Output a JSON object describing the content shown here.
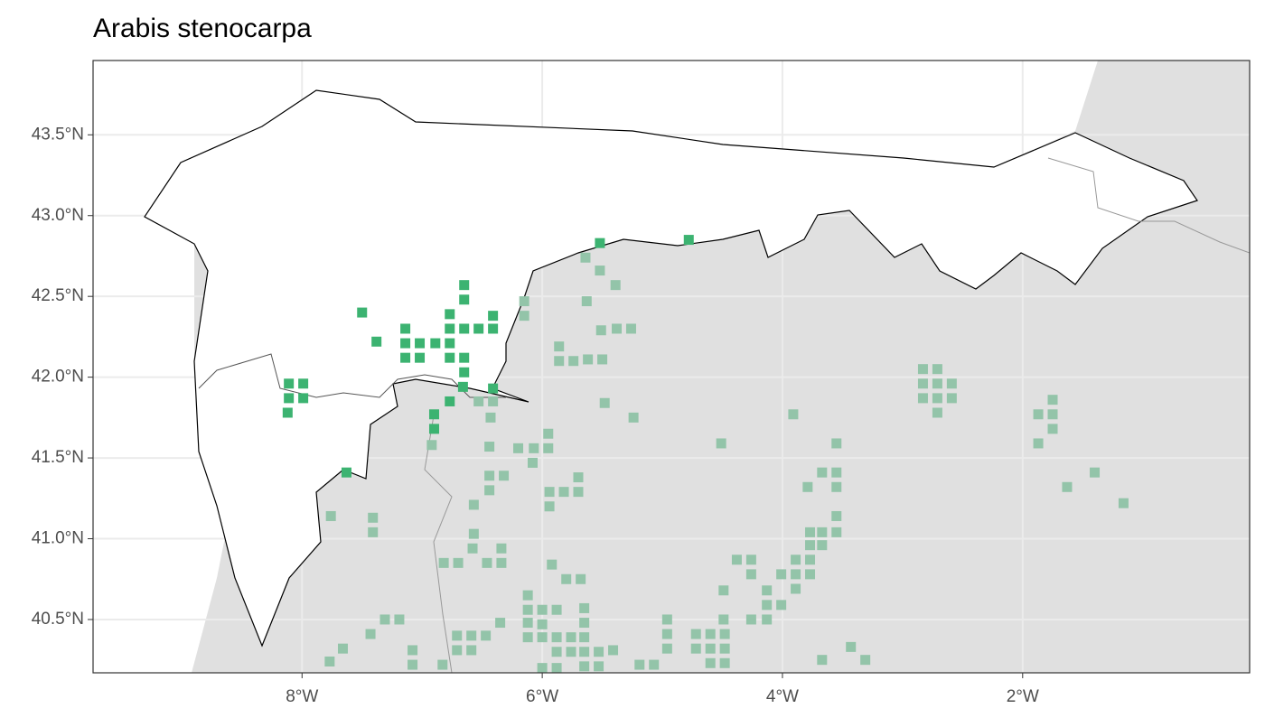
{
  "chart_data": {
    "type": "scatter",
    "title": "Arabis stenocarpa",
    "xlim": [
      -9.74,
      -0.11
    ],
    "ylim": [
      40.17,
      43.96
    ],
    "xticks": [
      {
        "value": -8,
        "label": "8°W"
      },
      {
        "value": -6,
        "label": "6°W"
      },
      {
        "value": -4,
        "label": "4°W"
      },
      {
        "value": -2,
        "label": "2°W"
      }
    ],
    "yticks": [
      {
        "value": 40.5,
        "label": "40.5°N"
      },
      {
        "value": 41.0,
        "label": "41.0°N"
      },
      {
        "value": 41.5,
        "label": "41.5°N"
      },
      {
        "value": 42.0,
        "label": "42.0°N"
      },
      {
        "value": 42.5,
        "label": "42.5°N"
      },
      {
        "value": 43.0,
        "label": "43.0°N"
      },
      {
        "value": 43.5,
        "label": "43.5°N"
      }
    ],
    "grid": true,
    "series": [
      {
        "color": "#3cb371",
        "x": [
          -7.5,
          -7.38,
          -7.14,
          -7.14,
          -7.02,
          -6.89,
          -6.77,
          -6.77,
          -6.65,
          -6.53,
          -6.41,
          -6.41,
          -6.77,
          -6.65,
          -6.65,
          -7.14,
          -7.02,
          -6.77,
          -6.65,
          -6.65,
          -6.66,
          -8.11,
          -7.99,
          -8.11,
          -7.99,
          -8.12,
          -6.41,
          -6.9,
          -6.9,
          -6.77,
          -5.52,
          -4.78,
          -7.63
        ],
        "values": [
          42.4,
          42.22,
          42.3,
          42.21,
          42.21,
          42.21,
          42.21,
          42.3,
          42.3,
          42.3,
          42.3,
          42.38,
          42.39,
          42.48,
          42.57,
          42.12,
          42.12,
          42.12,
          42.12,
          42.03,
          41.94,
          41.96,
          41.96,
          41.87,
          41.87,
          41.78,
          41.93,
          41.77,
          41.68,
          41.85,
          42.83,
          42.85,
          41.41
        ]
      },
      {
        "color": "#93c4a9",
        "x": [
          -6.15,
          -6.15,
          -5.64,
          -5.52,
          -5.39,
          -5.63,
          -5.51,
          -5.38,
          -5.26,
          -5.86,
          -5.86,
          -5.74,
          -5.62,
          -5.5,
          -5.48,
          -5.24,
          -6.41,
          -6.53,
          -6.43,
          -6.92,
          -6.44,
          -6.2,
          -6.07,
          -5.95,
          -5.95,
          -6.08,
          -6.44,
          -6.32,
          -6.44,
          -6.57,
          -5.94,
          -5.82,
          -5.7,
          -5.7,
          -5.94,
          -7.76,
          -7.41,
          -7.41,
          -6.57,
          -6.58,
          -6.34,
          -6.82,
          -6.7,
          -6.46,
          -6.34,
          -5.92,
          -5.8,
          -5.68,
          -6.12,
          -6.12,
          -6.0,
          -5.88,
          -6.0,
          -6.12,
          -6.12,
          -6.0,
          -5.88,
          -5.76,
          -6.0,
          -5.88,
          -5.88,
          -5.76,
          -5.65,
          -5.65,
          -5.65,
          -5.65,
          -5.53,
          -5.41,
          -5.65,
          -5.53,
          -6.71,
          -6.59,
          -6.47,
          -6.35,
          -6.71,
          -6.59,
          -7.08,
          -7.08,
          -6.83,
          -7.66,
          -7.77,
          -7.43,
          -7.31,
          -7.19,
          -5.19,
          -5.07,
          -4.96,
          -4.96,
          -4.96,
          -4.72,
          -4.6,
          -4.48,
          -4.72,
          -4.6,
          -4.48,
          -4.6,
          -4.48,
          -4.49,
          -4.49,
          -4.38,
          -4.26,
          -4.26,
          -4.13,
          -4.13,
          -4.13,
          -4.01,
          -4.26,
          -4.01,
          -3.89,
          -3.89,
          -3.77,
          -3.77,
          -3.89,
          -3.77,
          -3.77,
          -3.67,
          -3.55,
          -3.67,
          -3.55,
          -3.55,
          -3.55,
          -3.67,
          -3.79,
          -3.55,
          -4.51,
          -3.91,
          -2.83,
          -2.71,
          -2.83,
          -2.71,
          -2.59,
          -2.83,
          -2.71,
          -2.59,
          -2.71,
          -1.75,
          -1.87,
          -1.75,
          -1.75,
          -1.87,
          -1.63,
          -1.4,
          -1.16,
          -3.43,
          -3.31,
          -3.67
        ],
        "values": [
          42.47,
          42.38,
          42.74,
          42.66,
          42.57,
          42.47,
          42.29,
          42.3,
          42.3,
          42.19,
          42.1,
          42.1,
          42.11,
          42.11,
          41.84,
          41.75,
          41.85,
          41.85,
          41.75,
          41.58,
          41.57,
          41.56,
          41.56,
          41.56,
          41.65,
          41.47,
          41.39,
          41.39,
          41.3,
          41.21,
          41.29,
          41.29,
          41.29,
          41.38,
          41.2,
          41.14,
          41.13,
          41.04,
          41.03,
          40.94,
          40.94,
          40.85,
          40.85,
          40.85,
          40.85,
          40.84,
          40.75,
          40.75,
          40.65,
          40.56,
          40.56,
          40.56,
          40.47,
          40.48,
          40.39,
          40.39,
          40.39,
          40.39,
          40.2,
          40.2,
          40.3,
          40.3,
          40.57,
          40.48,
          40.39,
          40.3,
          40.3,
          40.31,
          40.21,
          40.21,
          40.4,
          40.4,
          40.4,
          40.48,
          40.31,
          40.31,
          40.31,
          40.22,
          40.22,
          40.32,
          40.24,
          40.41,
          40.5,
          40.5,
          40.22,
          40.22,
          40.5,
          40.41,
          40.32,
          40.41,
          40.41,
          40.41,
          40.32,
          40.32,
          40.32,
          40.23,
          40.23,
          40.5,
          40.68,
          40.87,
          40.87,
          40.78,
          40.68,
          40.59,
          40.5,
          40.59,
          40.5,
          40.78,
          40.78,
          40.87,
          40.87,
          40.78,
          40.69,
          40.96,
          41.04,
          41.04,
          41.04,
          40.96,
          41.14,
          41.32,
          41.41,
          41.41,
          41.32,
          41.59,
          41.59,
          41.77,
          42.05,
          42.05,
          41.96,
          41.96,
          41.96,
          41.87,
          41.87,
          41.87,
          41.78,
          41.86,
          41.77,
          41.77,
          41.68,
          41.59,
          41.32,
          41.41,
          41.22,
          40.33,
          40.25,
          40.25
        ]
      }
    ]
  }
}
